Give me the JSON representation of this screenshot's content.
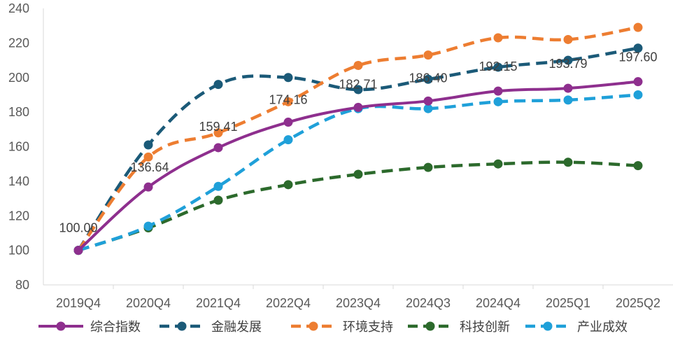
{
  "chart_data": {
    "type": "line",
    "title": "",
    "xlabel": "",
    "ylabel": "",
    "ylim": [
      80,
      240
    ],
    "yticks": [
      80,
      100,
      120,
      140,
      160,
      180,
      200,
      220,
      240
    ],
    "grid": false,
    "legend_position": "bottom",
    "categories": [
      "2019Q4",
      "2020Q4",
      "2021Q4",
      "2022Q4",
      "2023Q4",
      "2024Q3",
      "2024Q4",
      "2025Q1",
      "2025Q2"
    ],
    "series": [
      {
        "name": "综合指数",
        "color": "#8E2F8E",
        "style": "solid",
        "labeled": true,
        "values": [
          100.0,
          136.64,
          159.41,
          174.16,
          182.71,
          186.4,
          192.15,
          193.79,
          197.6
        ],
        "labels": [
          "100.00",
          "136.64",
          "159.41",
          "174.16",
          "182.71",
          "186.40",
          "192.15",
          "193.79",
          "197.60"
        ]
      },
      {
        "name": "金融发展",
        "color": "#1B5A78",
        "style": "dashed",
        "values": [
          100,
          161,
          196,
          200,
          193,
          199,
          206,
          210,
          217
        ]
      },
      {
        "name": "环境支持",
        "color": "#ED7D31",
        "style": "dashed",
        "values": [
          100,
          154,
          168,
          186,
          207,
          213,
          223,
          222,
          229
        ]
      },
      {
        "name": "科技创新",
        "color": "#2C6A2C",
        "style": "dashed",
        "values": [
          100,
          113,
          129,
          138,
          144,
          148,
          150,
          151,
          149
        ]
      },
      {
        "name": "产业成效",
        "color": "#1FA0D9",
        "style": "dashed",
        "values": [
          100,
          114,
          137,
          164,
          182,
          182,
          186,
          187,
          190
        ]
      }
    ]
  }
}
